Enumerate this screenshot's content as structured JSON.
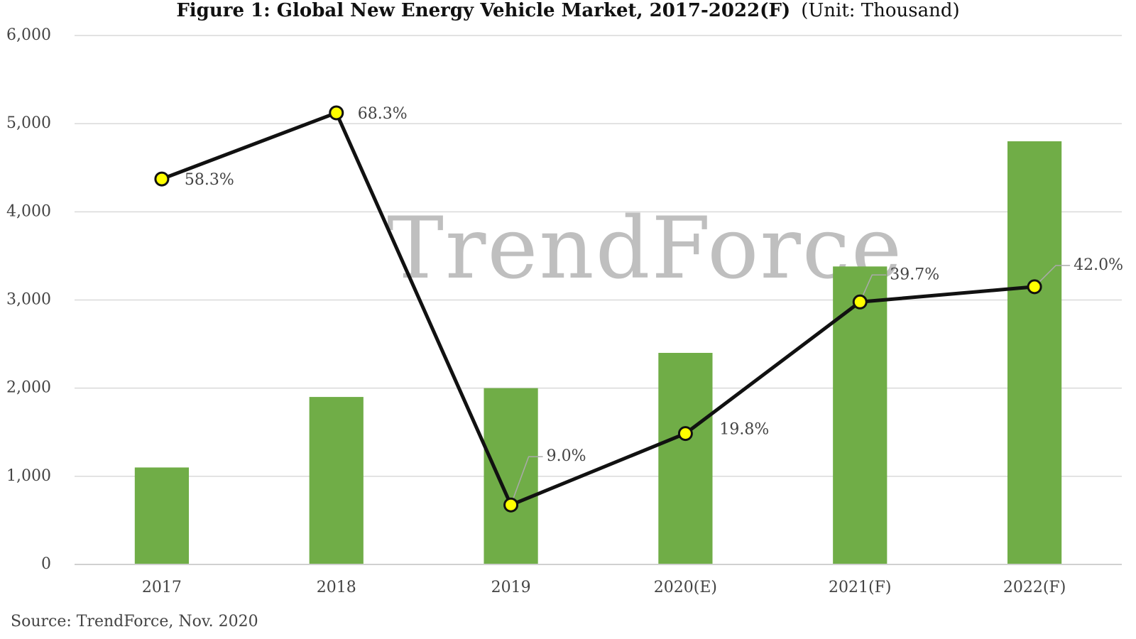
{
  "chart_data": {
    "type": "bar",
    "title": "Figure 1: Global New Energy Vehicle Market, 2017-2022(F)",
    "subtitle": "(Unit: Thousand)",
    "source": "Source: TrendForce, Nov. 2020",
    "watermark": "TrendForce",
    "categories": [
      "2017",
      "2018",
      "2019",
      "2020(E)",
      "2021(F)",
      "2022(F)"
    ],
    "series": [
      {
        "type": "bar",
        "color": "#70ad47",
        "values": [
          1100,
          1900,
          2000,
          2400,
          3380,
          4800
        ]
      },
      {
        "type": "line",
        "axis": "y2",
        "color": "#111111",
        "marker_color": "#ffff00",
        "values": [
          58.3,
          68.3,
          9.0,
          19.8,
          39.7,
          42.0
        ],
        "value_labels": [
          "58.3%",
          "68.3%",
          "9.0%",
          "19.8%",
          "39.7%",
          "42.0%"
        ]
      }
    ],
    "ylim": [
      0,
      6000
    ],
    "yticks": [
      0,
      {
        "value": 1000,
        "label": "1,000"
      },
      {
        "value": 2000,
        "label": "2,000"
      },
      {
        "value": 3000,
        "label": "3,000"
      },
      {
        "value": 4000,
        "label": "4,000"
      },
      {
        "value": 5000,
        "label": "5,000"
      },
      {
        "value": 6000,
        "label": "6,000"
      }
    ],
    "y2lim": [
      0,
      80
    ],
    "grid": true
  }
}
